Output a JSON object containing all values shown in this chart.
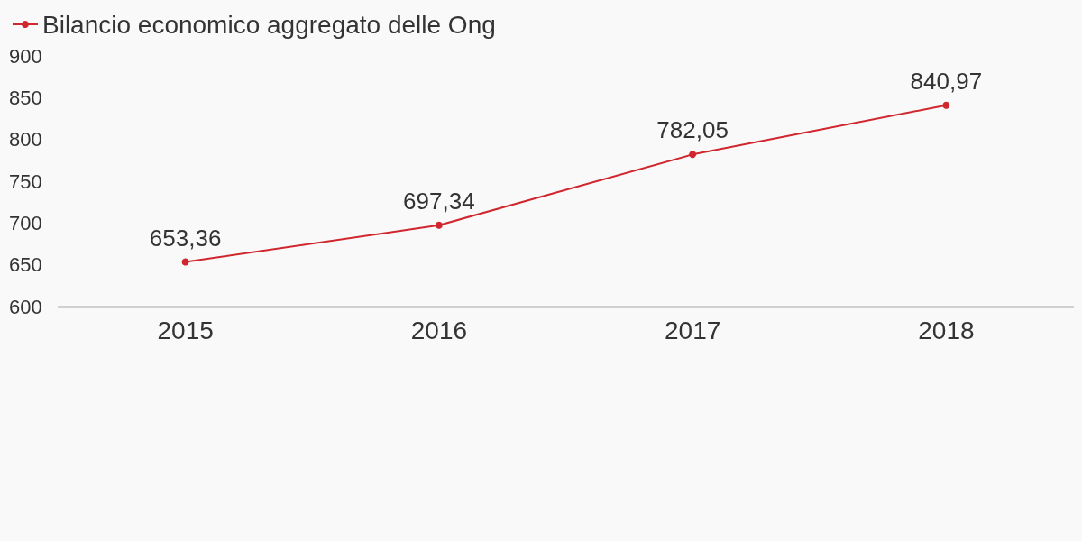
{
  "chart_data": {
    "type": "line",
    "categories": [
      "2015",
      "2016",
      "2017",
      "2018"
    ],
    "series": [
      {
        "name": "Bilancio economico aggregato delle Ong",
        "color": "#d0262e",
        "values": [
          653.36,
          697.34,
          782.05,
          840.97
        ],
        "value_labels": [
          "653,36",
          "697,34",
          "782,05",
          "840,97"
        ]
      }
    ],
    "ylim": [
      600,
      900
    ],
    "yticks": [
      600,
      650,
      700,
      750,
      800,
      850,
      900
    ],
    "grid": false,
    "legend": "top left",
    "marker": "circle",
    "line_style": "solid"
  }
}
